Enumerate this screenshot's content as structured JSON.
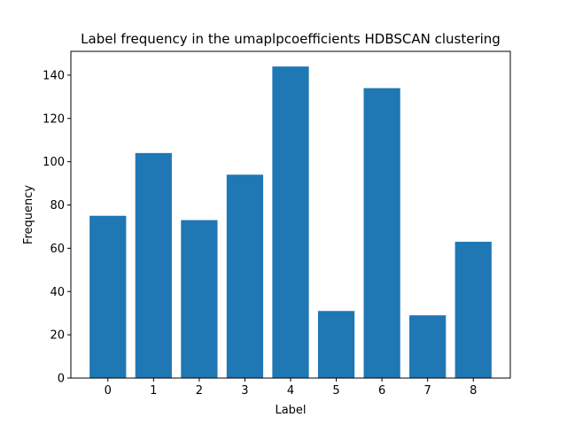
{
  "chart_data": {
    "type": "bar",
    "title": "Label frequency in the umaplpcoefficients HDBSCAN clustering",
    "xlabel": "Label",
    "ylabel": "Frequency",
    "categories": [
      "0",
      "1",
      "2",
      "3",
      "4",
      "5",
      "6",
      "7",
      "8"
    ],
    "values": [
      75,
      104,
      73,
      94,
      144,
      31,
      134,
      29,
      63
    ],
    "ylim": [
      0,
      151
    ],
    "yticks": [
      "0",
      "20",
      "40",
      "60",
      "80",
      "100",
      "120",
      "140"
    ],
    "grid": false,
    "bar_color": "#1f77b4"
  }
}
